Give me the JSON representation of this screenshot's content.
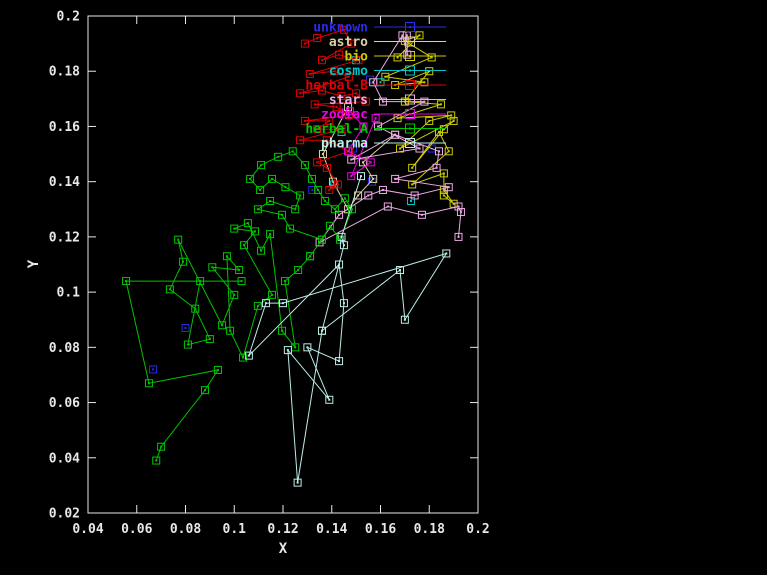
{
  "window": {
    "background": "#000000",
    "foreground": "#e8e8e8"
  },
  "chart_data": {
    "type": "line",
    "title": "",
    "xlabel": "X",
    "ylabel": "Y",
    "xlim": [
      0.04,
      0.2
    ],
    "ylim": [
      0.02,
      0.2
    ],
    "grid": false,
    "legend_position": "top-center-inside",
    "x_ticks": [
      0.04,
      0.06,
      0.08,
      0.1,
      0.12,
      0.14,
      0.16,
      0.18,
      0.2
    ],
    "x_tick_labels": [
      "0.04",
      "0.06",
      "0.08",
      "0.1",
      "0.12",
      "0.14",
      "0.16",
      "0.18",
      "0.2"
    ],
    "y_ticks": [
      0.02,
      0.04,
      0.06,
      0.08,
      0.1,
      0.12,
      0.14,
      0.16,
      0.18,
      0.2
    ],
    "y_tick_labels": [
      "0.02",
      "0.04",
      "0.06",
      "0.08",
      "0.1",
      "0.12",
      "0.14",
      "0.16",
      "0.18",
      "0.2"
    ],
    "series": [
      {
        "name": "unknown",
        "color": "#2a2ae8",
        "lines": false,
        "points": [
          [
            0.0667,
            0.072
          ],
          [
            0.08,
            0.087
          ],
          [
            0.132,
            0.137
          ],
          [
            0.1487,
            0.152
          ],
          [
            0.1557,
            0.177
          ],
          [
            0.1565,
            0.14
          ],
          [
            0.181,
            0.152
          ]
        ]
      },
      {
        "name": "astro",
        "color": "#d9d2a2",
        "lines": true,
        "points": [
          [
            0.1467,
            0.167
          ],
          [
            0.1364,
            0.15
          ],
          [
            0.1405,
            0.14
          ],
          [
            0.1467,
            0.13
          ],
          [
            0.1508,
            0.135
          ],
          [
            0.157,
            0.141
          ],
          [
            0.1528,
            0.147
          ],
          [
            0.166,
            0.157
          ]
        ]
      },
      {
        "name": "bio",
        "color": "#cdcd00",
        "lines": true,
        "points": [
          [
            0.167,
            0.185
          ],
          [
            0.176,
            0.193
          ],
          [
            0.17,
            0.191
          ],
          [
            0.181,
            0.185
          ],
          [
            0.162,
            0.178
          ],
          [
            0.178,
            0.176
          ],
          [
            0.166,
            0.175
          ],
          [
            0.18,
            0.18
          ],
          [
            0.17,
            0.169
          ],
          [
            0.1848,
            0.168
          ],
          [
            0.167,
            0.163
          ],
          [
            0.189,
            0.164
          ],
          [
            0.18,
            0.162
          ],
          [
            0.168,
            0.152
          ],
          [
            0.19,
            0.162
          ],
          [
            0.186,
            0.159
          ],
          [
            0.173,
            0.145
          ],
          [
            0.184,
            0.158
          ],
          [
            0.188,
            0.151
          ],
          [
            0.173,
            0.139
          ],
          [
            0.186,
            0.143
          ],
          [
            0.186,
            0.137
          ],
          [
            0.19,
            0.132
          ],
          [
            0.186,
            0.135
          ]
        ]
      },
      {
        "name": "cosmo",
        "color": "#00c8c8",
        "lines": false,
        "points": [
          [
            0.15,
            0.184
          ],
          [
            0.16,
            0.176
          ],
          [
            0.141,
            0.139
          ],
          [
            0.1725,
            0.133
          ],
          [
            0.144,
            0.158
          ]
        ]
      },
      {
        "name": "herbal-B",
        "color": "#e00000",
        "lines": true,
        "points": [
          [
            0.129,
            0.19
          ],
          [
            0.134,
            0.192
          ],
          [
            0.145,
            0.195
          ],
          [
            0.148,
            0.19
          ],
          [
            0.136,
            0.184
          ],
          [
            0.143,
            0.186
          ],
          [
            0.151,
            0.184
          ],
          [
            0.131,
            0.179
          ],
          [
            0.141,
            0.18
          ],
          [
            0.147,
            0.178
          ],
          [
            0.127,
            0.172
          ],
          [
            0.136,
            0.173
          ],
          [
            0.144,
            0.171
          ],
          [
            0.15,
            0.172
          ],
          [
            0.154,
            0.169
          ],
          [
            0.133,
            0.168
          ],
          [
            0.142,
            0.167
          ],
          [
            0.147,
            0.164
          ],
          [
            0.129,
            0.162
          ],
          [
            0.139,
            0.162
          ],
          [
            0.134,
            0.159
          ],
          [
            0.144,
            0.159
          ],
          [
            0.127,
            0.155
          ],
          [
            0.138,
            0.155
          ],
          [
            0.147,
            0.151
          ],
          [
            0.134,
            0.147
          ],
          [
            0.138,
            0.145
          ],
          [
            0.1425,
            0.139
          ],
          [
            0.139,
            0.137
          ]
        ]
      },
      {
        "name": "stars",
        "color": "#edaae5",
        "lines": true,
        "points": [
          [
            0.1708,
            0.193
          ],
          [
            0.171,
            0.186
          ],
          [
            0.169,
            0.193
          ],
          [
            0.157,
            0.176
          ],
          [
            0.161,
            0.169
          ],
          [
            0.178,
            0.169
          ],
          [
            0.159,
            0.16
          ],
          [
            0.176,
            0.152
          ],
          [
            0.148,
            0.148
          ],
          [
            0.166,
            0.157
          ],
          [
            0.184,
            0.151
          ],
          [
            0.183,
            0.145
          ],
          [
            0.166,
            0.141
          ],
          [
            0.188,
            0.138
          ],
          [
            0.174,
            0.135
          ],
          [
            0.161,
            0.137
          ],
          [
            0.155,
            0.135
          ],
          [
            0.143,
            0.128
          ],
          [
            0.135,
            0.118
          ],
          [
            0.163,
            0.131
          ],
          [
            0.177,
            0.128
          ],
          [
            0.192,
            0.131
          ],
          [
            0.193,
            0.129
          ],
          [
            0.192,
            0.12
          ]
        ]
      },
      {
        "name": "zodiac",
        "color": "#f000e6",
        "lines": true,
        "points": [
          [
            0.1475,
            0.1655
          ],
          [
            0.153,
            0.16
          ],
          [
            0.1467,
            0.151
          ],
          [
            0.156,
            0.147
          ],
          [
            0.148,
            0.142
          ],
          [
            0.158,
            0.163
          ]
        ]
      },
      {
        "name": "herbal-A",
        "color": "#00c400",
        "lines": true,
        "points": [
          [
            0.068,
            0.039
          ],
          [
            0.07,
            0.044
          ],
          [
            0.088,
            0.0645
          ],
          [
            0.0933,
            0.0718
          ],
          [
            0.065,
            0.067
          ],
          [
            0.0556,
            0.104
          ],
          [
            0.103,
            0.104
          ],
          [
            0.086,
            0.104
          ],
          [
            0.081,
            0.081
          ],
          [
            0.09,
            0.083
          ],
          [
            0.084,
            0.094
          ],
          [
            0.0736,
            0.101
          ],
          [
            0.079,
            0.111
          ],
          [
            0.077,
            0.119
          ],
          [
            0.095,
            0.088
          ],
          [
            0.1,
            0.099
          ],
          [
            0.091,
            0.109
          ],
          [
            0.102,
            0.108
          ],
          [
            0.097,
            0.113
          ],
          [
            0.0983,
            0.086
          ],
          [
            0.1036,
            0.0763
          ],
          [
            0.1097,
            0.095
          ],
          [
            0.1155,
            0.099
          ],
          [
            0.104,
            0.117
          ],
          [
            0.1085,
            0.122
          ],
          [
            0.1,
            0.123
          ],
          [
            0.1056,
            0.125
          ],
          [
            0.111,
            0.115
          ],
          [
            0.1147,
            0.121
          ],
          [
            0.1196,
            0.086
          ],
          [
            0.125,
            0.08
          ],
          [
            0.1208,
            0.104
          ],
          [
            0.1262,
            0.108
          ],
          [
            0.1311,
            0.113
          ],
          [
            0.136,
            0.119
          ],
          [
            0.1229,
            0.123
          ],
          [
            0.1196,
            0.128
          ],
          [
            0.1097,
            0.13
          ],
          [
            0.1147,
            0.133
          ],
          [
            0.125,
            0.13
          ],
          [
            0.127,
            0.135
          ],
          [
            0.121,
            0.138
          ],
          [
            0.1155,
            0.141
          ],
          [
            0.1106,
            0.137
          ],
          [
            0.1065,
            0.141
          ],
          [
            0.111,
            0.146
          ],
          [
            0.118,
            0.149
          ],
          [
            0.124,
            0.151
          ],
          [
            0.129,
            0.146
          ],
          [
            0.1319,
            0.141
          ],
          [
            0.1344,
            0.137
          ],
          [
            0.1372,
            0.133
          ],
          [
            0.1413,
            0.13
          ],
          [
            0.1454,
            0.134
          ],
          [
            0.1483,
            0.13
          ],
          [
            0.1434,
            0.119
          ],
          [
            0.1393,
            0.124
          ],
          [
            0.136,
            0.119
          ],
          [
            0.1311,
            0.113
          ]
        ]
      },
      {
        "name": "pharma",
        "color": "#bdeeea",
        "lines": true,
        "points": [
          [
            0.152,
            0.142
          ],
          [
            0.144,
            0.12
          ],
          [
            0.145,
            0.117
          ],
          [
            0.136,
            0.086
          ],
          [
            0.126,
            0.031
          ],
          [
            0.122,
            0.079
          ],
          [
            0.139,
            0.061
          ],
          [
            0.13,
            0.08
          ],
          [
            0.143,
            0.075
          ],
          [
            0.145,
            0.096
          ],
          [
            0.143,
            0.11
          ],
          [
            0.106,
            0.077
          ],
          [
            0.113,
            0.096
          ],
          [
            0.12,
            0.096
          ],
          [
            0.187,
            0.114
          ],
          [
            0.17,
            0.09
          ],
          [
            0.168,
            0.108
          ],
          [
            0.136,
            0.086
          ]
        ]
      }
    ]
  }
}
